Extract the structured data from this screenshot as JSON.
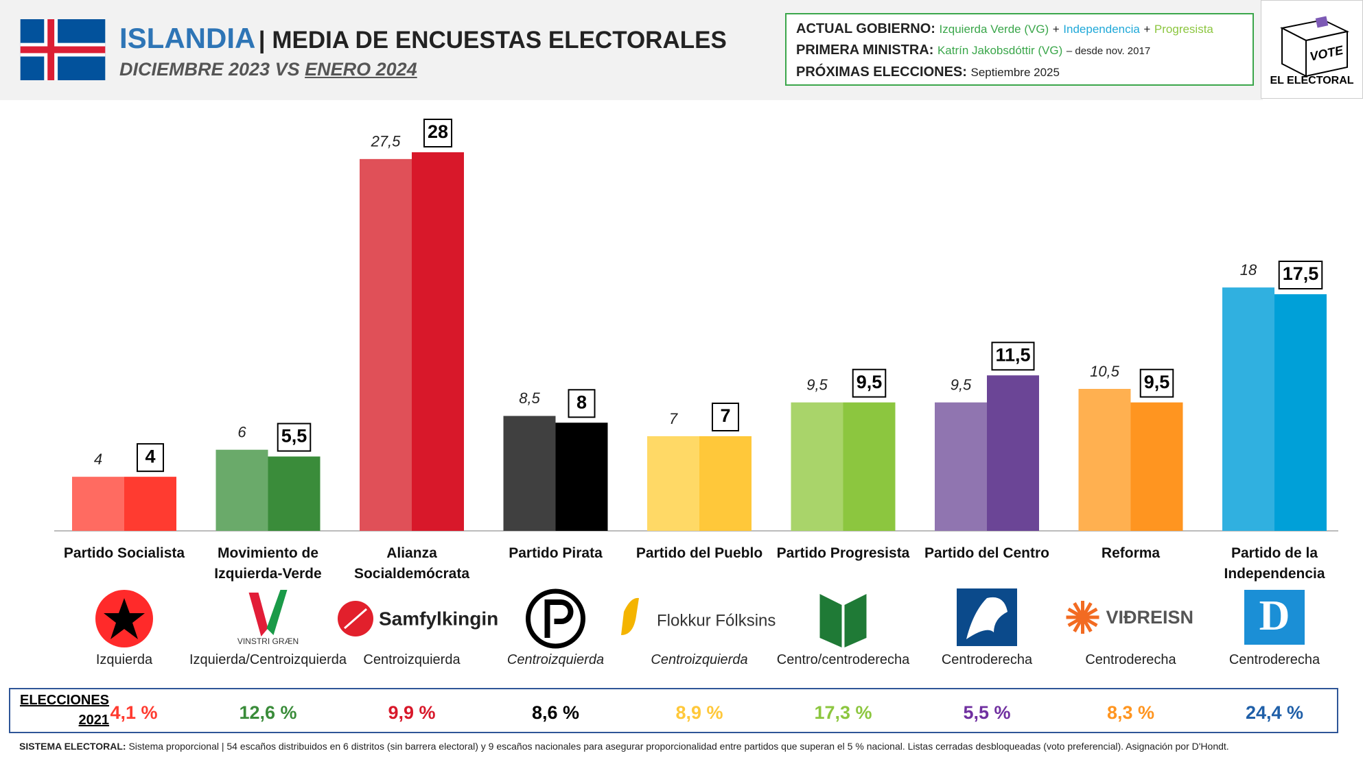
{
  "header": {
    "title": "ISLANDIA",
    "title_rest": "| MEDIA DE ENCUESTAS ELECTORALES",
    "subtitle": "DICIEMBRE 2023 VS",
    "subtitle_underlined": "ENERO 2024"
  },
  "government": {
    "label": "ACTUAL GOBIERNO:",
    "separator": "+",
    "parties": [
      {
        "text": "Izquierda Verde (VG)",
        "color": "#3aa64a"
      },
      {
        "text": "Independencia",
        "color": "#1fa8d8"
      },
      {
        "text": "Progresista",
        "color": "#8cc63f"
      }
    ]
  },
  "prime_minister": {
    "label": "PRIMERA MINISTRA:",
    "name": "Katrín Jakobsdóttir (VG)",
    "since": "– desde nov. 2017"
  },
  "next_elections": {
    "label": "PRÓXIMAS ELECCIONES:",
    "date": "Septiembre 2025"
  },
  "brand": {
    "ballot": "VOTE",
    "name": "EL ELECTORAL"
  },
  "chart_data": {
    "type": "bar",
    "categories": [
      "Partido Socialista",
      "Movimiento de\nIzquierda-Verde",
      "Alianza\nSocialdemócrata",
      "Partido Pirata",
      "Partido del Pueblo",
      "Partido Progresista",
      "Partido del Centro",
      "Reforma",
      "Partido de la\nIndependencia"
    ],
    "series": [
      {
        "colors": [
          "#ff6b61",
          "#6aaa6a",
          "#e05058",
          "#404040",
          "#ffd966",
          "#a9d46a",
          "#9075b0",
          "#ffb050",
          "#30b0e0"
        ],
        "values": [
          4,
          6,
          27.5,
          8.5,
          7,
          9.5,
          9.5,
          10.5,
          18
        ],
        "value_labels": [
          "4",
          "6",
          "27,5",
          "8,5",
          "7",
          "9,5",
          "9,5",
          "10,5",
          "18"
        ]
      },
      {
        "colors": [
          "#ff3b30",
          "#3a8c3a",
          "#d8182a",
          "#000000",
          "#ffc83a",
          "#8cc63f",
          "#6b4596",
          "#ff9520",
          "#00a0d8"
        ],
        "values": [
          4,
          5.5,
          28,
          8,
          7,
          9.5,
          11.5,
          9.5,
          17.5
        ],
        "value_labels": [
          "4",
          "5,5",
          "28",
          "8",
          "7",
          "9,5",
          "11,5",
          "9,5",
          "17,5"
        ]
      }
    ],
    "ylim": [
      0,
      28
    ]
  },
  "parties": {
    "logo_texts": [
      null,
      "VINSTRI GRÆN",
      "Samfylkingin",
      null,
      "Flokkur Fólksins",
      null,
      null,
      "VIÐREISN",
      "D"
    ],
    "ideologies": [
      "Izquierda",
      "Izquierda/Centroizquierda",
      "Centroizquierda",
      "Centroizquierda",
      "Centroizquierda",
      "Centro/centroderecha",
      "Centroderecha",
      "Centroderecha",
      "Centroderecha"
    ]
  },
  "elections_2021": {
    "label": [
      "ELECCIONES",
      "2021"
    ],
    "results": [
      "4,1 %",
      "12,6 %",
      "9,9 %",
      "8,6 %",
      "8,9 %",
      "17,3 %",
      "5,5 %",
      "8,3 %",
      "24,4 %"
    ],
    "colors": [
      "#ff3b30",
      "#3a8c3a",
      "#d8182a",
      "#000000",
      "#ffc83a",
      "#8cc63f",
      "#7030a0",
      "#ff9520",
      "#1f5fa8"
    ]
  },
  "footer": {
    "label": "SISTEMA ELECTORAL:",
    "text": "Sistema proporcional | 54 escaños distribuidos en 6 distritos (sin barrera electoral) y 9 escaños nacionales para asegurar proporcionalidad entre partidos que superan el 5 % nacional. Listas cerradas desbloqueadas (voto preferencial). Asignación por D'Hondt."
  }
}
